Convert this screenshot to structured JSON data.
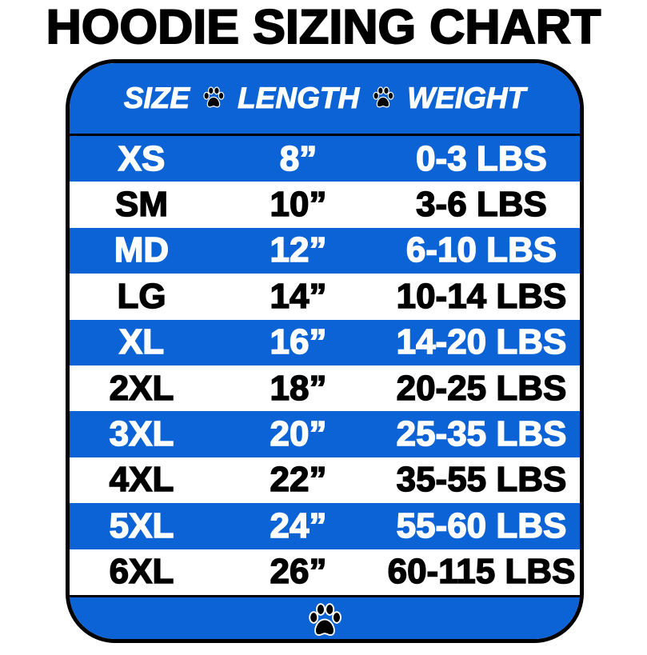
{
  "title": "HOODIE SIZING CHART",
  "colors": {
    "blue": "#0c63d6",
    "white": "#ffffff",
    "text_dark": "#000000"
  },
  "header": {
    "columns": [
      "SIZE",
      "LENGTH",
      "WEIGHT"
    ],
    "separator_icon": "paw-print-icon"
  },
  "rows": [
    {
      "size": "XS",
      "length": "8”",
      "weight": "0-3 LBS"
    },
    {
      "size": "SM",
      "length": "10”",
      "weight": "3-6 LBS"
    },
    {
      "size": "MD",
      "length": "12”",
      "weight": "6-10 LBS"
    },
    {
      "size": "LG",
      "length": "14”",
      "weight": "10-14 LBS"
    },
    {
      "size": "XL",
      "length": "16”",
      "weight": "14-20 LBS"
    },
    {
      "size": "2XL",
      "length": "18”",
      "weight": "20-25 LBS"
    },
    {
      "size": "3XL",
      "length": "20”",
      "weight": "25-35 LBS"
    },
    {
      "size": "4XL",
      "length": "22”",
      "weight": "35-55 LBS"
    },
    {
      "size": "5XL",
      "length": "24”",
      "weight": "55-60 LBS"
    },
    {
      "size": "6XL",
      "length": "26”",
      "weight": "60-115 LBS"
    }
  ],
  "footer": {
    "icon": "paw-print-icon"
  }
}
